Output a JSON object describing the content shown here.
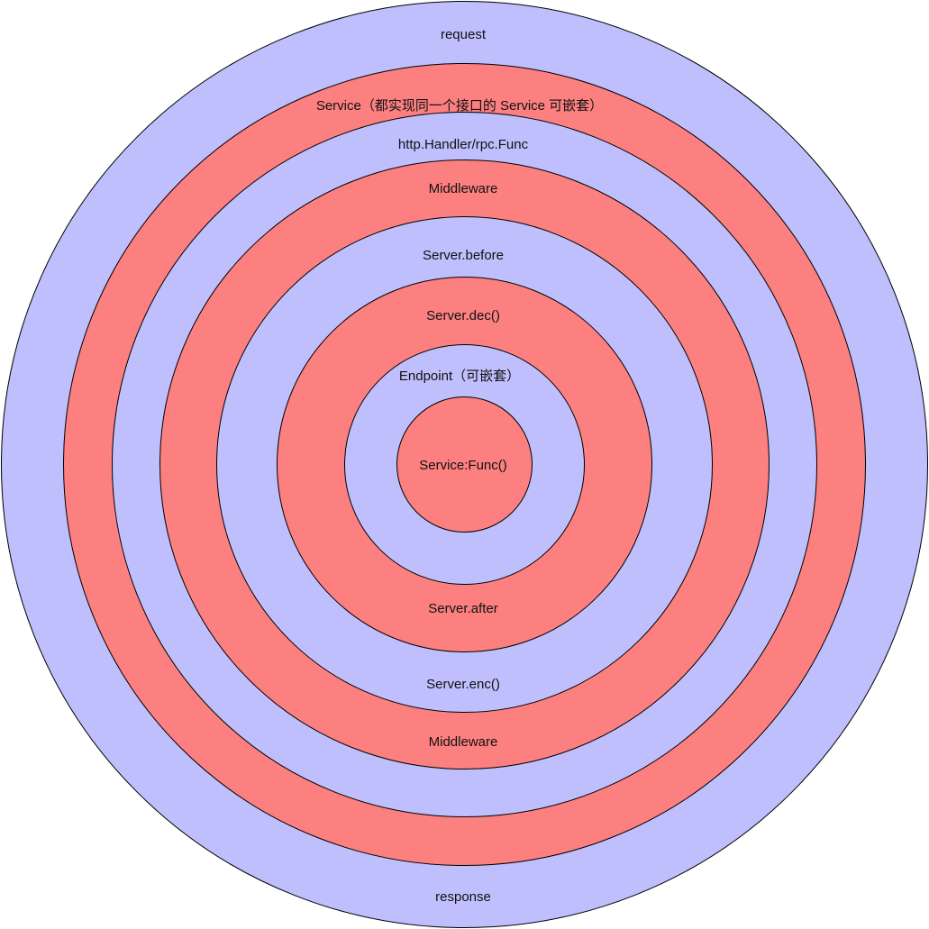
{
  "colors": {
    "blue": "#bfbffd",
    "red": "#fd8080",
    "stroke": "#000000",
    "text": "#111111"
  },
  "rings": [
    {
      "id": "ring-request-response",
      "color": "blue"
    },
    {
      "id": "ring-service",
      "color": "red"
    },
    {
      "id": "ring-http-handler",
      "color": "blue"
    },
    {
      "id": "ring-middleware",
      "color": "red"
    },
    {
      "id": "ring-server-before-enc",
      "color": "blue"
    },
    {
      "id": "ring-server-dec-after",
      "color": "red"
    },
    {
      "id": "ring-endpoint",
      "color": "blue"
    },
    {
      "id": "ring-service-func",
      "color": "red"
    }
  ],
  "labels": {
    "request": "request",
    "service": "Service（都实现同一个接口的 Service 可嵌套）",
    "http_handler": "http.Handler/rpc.Func",
    "middleware_top": "Middleware",
    "server_before": "Server.before",
    "server_dec": "Server.dec()",
    "endpoint": "Endpoint（可嵌套）",
    "service_func": "Service:Func()",
    "server_after": "Server.after",
    "server_enc": "Server.enc()",
    "middleware_bottom": "Middleware",
    "response": "response"
  }
}
